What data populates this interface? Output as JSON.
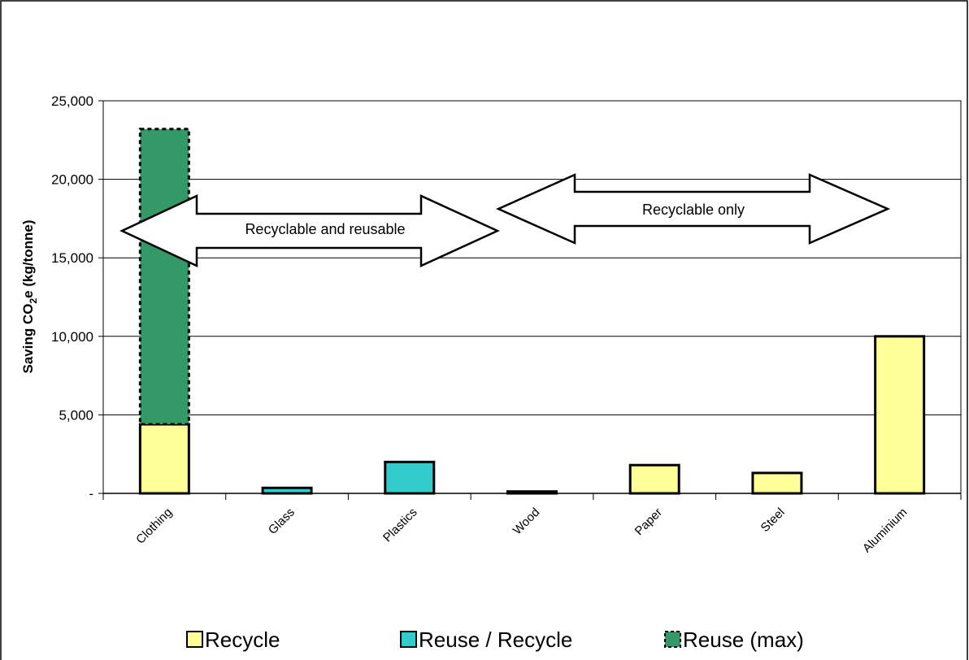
{
  "chart_data": {
    "type": "bar",
    "title": "",
    "xlabel": "",
    "ylabel_parts": [
      "Saving CO",
      "2",
      "e (kg/tonne)"
    ],
    "ylim": [
      0,
      25000
    ],
    "yticks": [
      {
        "value": 0,
        "label": "-"
      },
      {
        "value": 5000,
        "label": "5,000"
      },
      {
        "value": 10000,
        "label": "10,000"
      },
      {
        "value": 15000,
        "label": "15,000"
      },
      {
        "value": 20000,
        "label": "20,000"
      },
      {
        "value": 25000,
        "label": "25,000"
      }
    ],
    "grid": true,
    "categories": [
      "Clothing",
      "Glass",
      "Plastics",
      "Wood",
      "Paper",
      "Steel",
      "Aluminium"
    ],
    "series": [
      {
        "name": "Recycle",
        "color": "#ffff99",
        "values": [
          4400,
          0,
          0,
          0,
          1800,
          1300,
          10000
        ]
      },
      {
        "name": "Reuse / Recycle",
        "color": "#33cccc",
        "values": [
          0,
          350,
          2000,
          120,
          0,
          0,
          0
        ]
      },
      {
        "name": "Reuse (max)",
        "color": "#339966",
        "values": [
          18800,
          0,
          0,
          0,
          0,
          0,
          0
        ]
      }
    ],
    "annotations": [
      {
        "text": "Recyclable and reusable",
        "spans": [
          "Clothing",
          "Plastics"
        ]
      },
      {
        "text": "Recyclable only",
        "spans": [
          "Paper",
          "Aluminium"
        ]
      }
    ],
    "legend_position": "bottom"
  }
}
